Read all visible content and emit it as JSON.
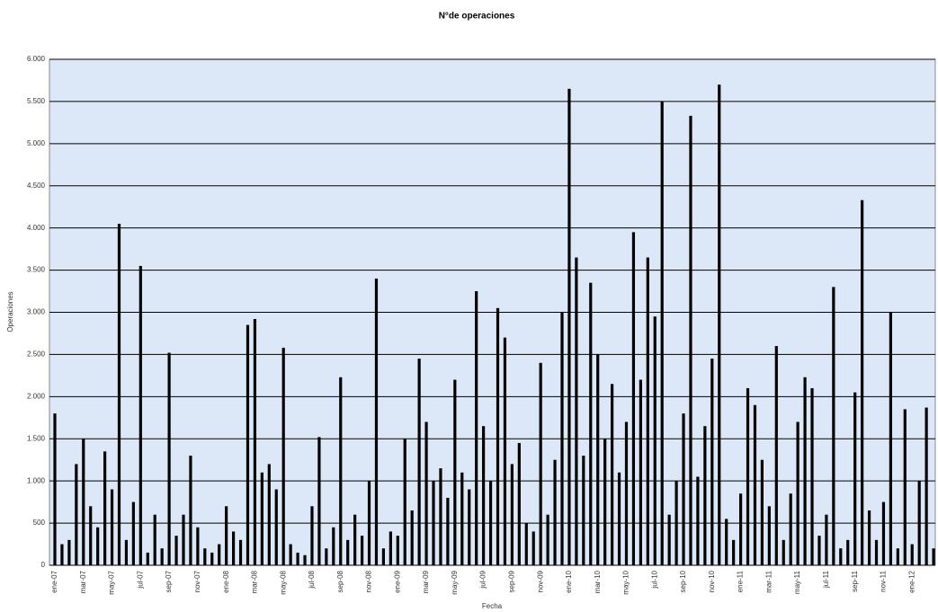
{
  "chart_data": {
    "type": "bar",
    "title": "N°de operaciones",
    "x_label": "Fecha",
    "y_label": "Operaciones",
    "categories": [
      "ene-07",
      null,
      null,
      null,
      "mar-07",
      null,
      null,
      null,
      "may-07",
      null,
      null,
      null,
      "jul-07",
      null,
      null,
      null,
      "sep-07",
      null,
      null,
      null,
      "nov-07",
      null,
      null,
      null,
      "ene-08",
      null,
      null,
      null,
      "mar-08",
      null,
      null,
      null,
      "may-08",
      null,
      null,
      null,
      "jul-08",
      null,
      null,
      null,
      "sep-08",
      null,
      null,
      null,
      "nov-08",
      null,
      null,
      null,
      "ene-09",
      null,
      null,
      null,
      "mar-09",
      null,
      null,
      null,
      "may-09",
      null,
      null,
      null,
      "jul-09",
      null,
      null,
      null,
      "sep-09",
      null,
      null,
      null,
      "nov-09",
      null,
      null,
      null,
      "ene-10",
      null,
      null,
      null,
      "mar-10",
      null,
      null,
      null,
      "may-10",
      null,
      null,
      null,
      "jul-10",
      null,
      null,
      null,
      "sep-10",
      null,
      null,
      null,
      "nov-10",
      null,
      null,
      null,
      "ene-11",
      null,
      null,
      null,
      "mar-11",
      null,
      null,
      null,
      "may-11",
      null,
      null,
      null,
      "jul-11",
      null,
      null,
      null,
      "sep-11",
      null,
      null,
      null,
      "nov-11",
      null,
      null,
      null,
      "ene-12",
      null,
      null,
      null
    ],
    "values": [
      1800,
      250,
      300,
      1200,
      1500,
      700,
      450,
      1350,
      900,
      4050,
      300,
      750,
      3550,
      150,
      600,
      200,
      2520,
      350,
      600,
      1300,
      450,
      200,
      150,
      250,
      700,
      400,
      300,
      2850,
      2920,
      1100,
      1200,
      900,
      2580,
      250,
      150,
      120,
      700,
      1520,
      200,
      450,
      2230,
      300,
      600,
      350,
      1000,
      3400,
      200,
      400,
      350,
      1500,
      650,
      2450,
      1700,
      1000,
      1150,
      800,
      2200,
      1100,
      900,
      3250,
      1650,
      1000,
      3050,
      2700,
      1200,
      1450,
      500,
      400,
      2400,
      600,
      1250,
      3000,
      5650,
      3650,
      1300,
      3350,
      2500,
      1500,
      2150,
      1100,
      1700,
      3950,
      2200,
      3650,
      2950,
      5500,
      600,
      1000,
      1800,
      5330,
      1050,
      1650,
      2450,
      5700,
      550,
      300,
      850,
      2100,
      1900,
      1250,
      700,
      2600,
      300,
      850,
      1700,
      2230,
      2100,
      350,
      600,
      3300,
      200,
      300,
      2050,
      4330,
      650,
      300,
      750,
      3000,
      200,
      1850,
      250,
      1000,
      1870,
      200
    ],
    "color": "#000000",
    "background": "#dce8f7",
    "grid": true,
    "ylim": [
      0,
      6000
    ],
    "yticks": [
      0,
      500,
      {
        "value": 1000,
        "label": "1.000"
      },
      {
        "value": 1500,
        "label": "1.500"
      },
      {
        "value": 2000,
        "label": "2.000"
      },
      {
        "value": 2500,
        "label": "2.500"
      },
      {
        "value": 3000,
        "label": "3.000"
      },
      {
        "value": 3500,
        "label": "3.500"
      },
      {
        "value": 4000,
        "label": "4.000"
      },
      {
        "value": 4500,
        "label": "4.500"
      },
      {
        "value": 5000,
        "label": "5.000"
      },
      {
        "value": 5500,
        "label": "5.500"
      },
      {
        "value": 6000,
        "label": "6.000"
      }
    ]
  }
}
